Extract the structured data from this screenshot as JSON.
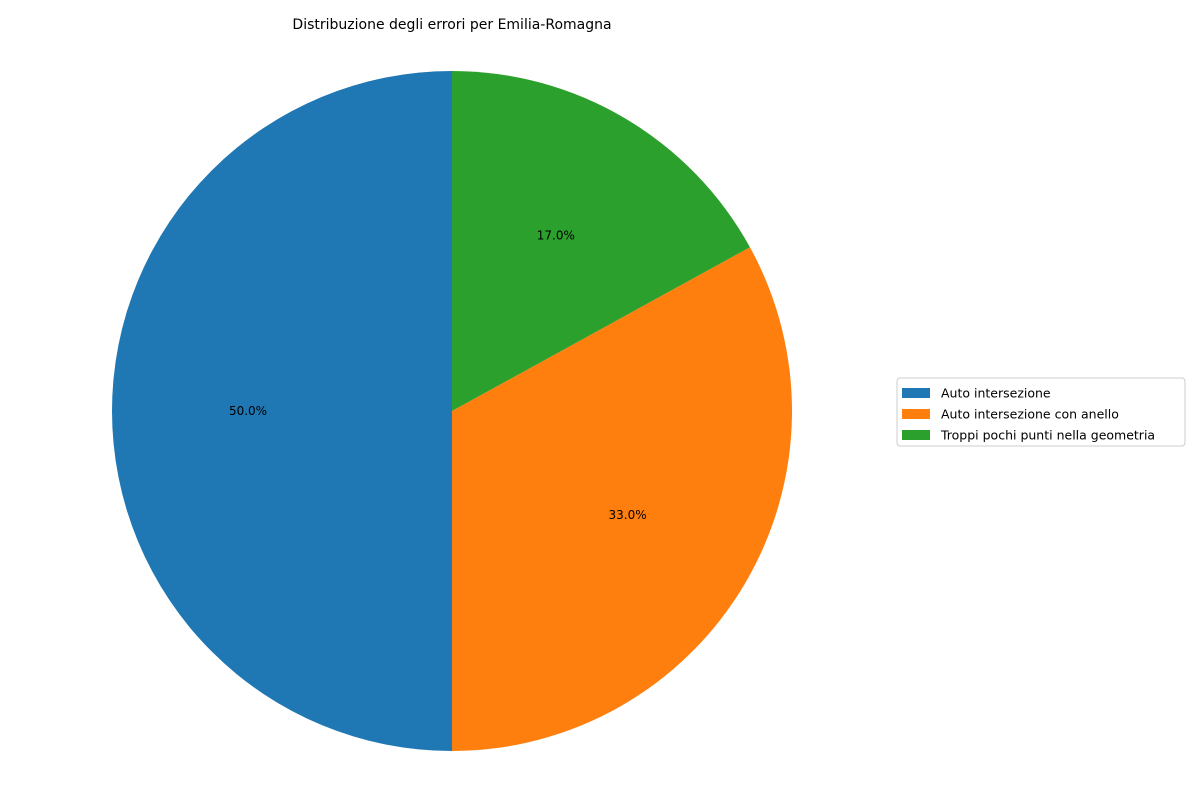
{
  "chart_data": {
    "type": "pie",
    "title": "Distribuzione degli errori per Emilia-Romagna",
    "categories": [
      "Auto intersezione",
      "Auto intersezione con anello",
      "Troppi pochi punti nella geometria"
    ],
    "values": [
      50.0,
      33.0,
      17.0
    ],
    "labels": [
      "50.0%",
      "33.0%",
      "17.0%"
    ],
    "colors": [
      "#1f77b4",
      "#ff7f0e",
      "#2ca02c"
    ],
    "start_angle_deg": 90,
    "direction": "counterclockwise",
    "legend_position": "right"
  }
}
